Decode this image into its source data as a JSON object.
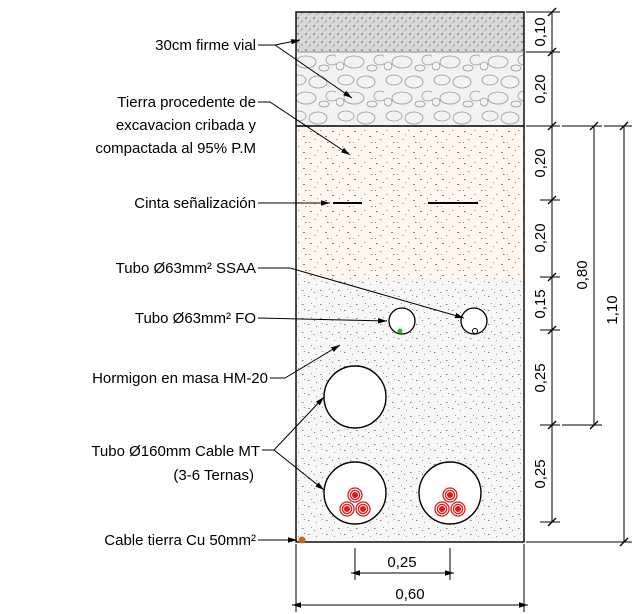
{
  "labels": {
    "firme": "30cm firme vial",
    "tierra_1": "Tierra procedente de",
    "tierra_2": "excavacion cribada y",
    "tierra_3": "compactada al 95% P.M",
    "cinta": "Cinta señalización",
    "tubo_ssaa": "Tubo Ø63mm² SSAA",
    "tubo_fo": "Tubo Ø63mm² FO",
    "hormigon": "Hormigon en masa HM-20",
    "tubo_mt_1": "Tubo Ø160mm Cable MT",
    "tubo_mt_2": "(3-6 Ternas)",
    "cable_tierra": "Cable tierra Cu 50mm²"
  },
  "dimensions": {
    "right_inner": [
      "0,10",
      "0,20",
      "0,20",
      "0,20",
      "0,15",
      "0,25",
      "0,25"
    ],
    "middle_total": "0,80",
    "outer_total": "1,10",
    "bottom_inner": "0,25",
    "bottom_total": "0,60"
  },
  "colors": {
    "outline": "#000000",
    "sand_speckle": "#d9692a",
    "concrete_speckle": "#8a8a8a",
    "cable_red": "#e01b1b",
    "fo_dot": "#22c11f",
    "ground_cable": "#c46a1a"
  }
}
